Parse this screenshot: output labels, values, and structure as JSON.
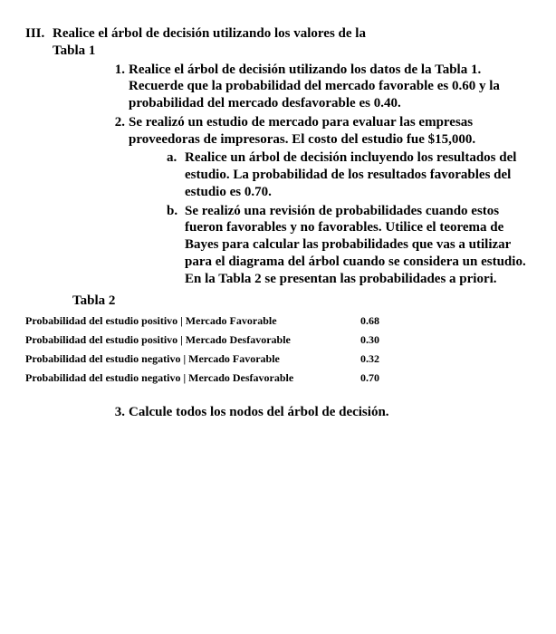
{
  "main": {
    "num": "III.",
    "title_line1": "Realice el árbol de decisión utilizando los valores de la",
    "title_line2": "Tabla 1"
  },
  "items": [
    {
      "num": "1.",
      "text": "Realice el árbol de decisión utilizando los datos de la Tabla 1.  Recuerde que la probabilidad del mercado favorable es 0.60 y la probabilidad del mercado desfavorable es 0.40."
    },
    {
      "num": "2.",
      "text": "Se realizó un estudio de mercado para evaluar las empresas proveedoras de impresoras. El costo del estudio fue $15,000.",
      "sub": [
        {
          "num": "a.",
          "text": "Realice un árbol de decisión incluyendo los resultados del estudio. La probabilidad de los resultados favorables del estudio es 0.70."
        },
        {
          "num": "b.",
          "text": "Se realizó una revisión de probabilidades cuando estos fueron favorables y no favorables. Utilice el teorema de Bayes para calcular las probabilidades que vas a utilizar para el diagrama del árbol cuando se considera un estudio. En la Tabla 2 se presentan las probabilidades a priori."
        }
      ]
    }
  ],
  "tabla2_label": "Tabla 2",
  "tabla2": [
    {
      "label": "Probabilidad del estudio positivo | Mercado Favorable",
      "value": "0.68"
    },
    {
      "label": "Probabilidad del estudio positivo | Mercado Desfavorable",
      "value": "0.30"
    },
    {
      "label": "Probabilidad del estudio negativo | Mercado Favorable",
      "value": "0.32"
    },
    {
      "label": "Probabilidad del estudio negativo | Mercado Desfavorable",
      "value": "0.70"
    }
  ],
  "final": {
    "num": "3.",
    "text": "Calcule todos los nodos del árbol de decisión."
  }
}
